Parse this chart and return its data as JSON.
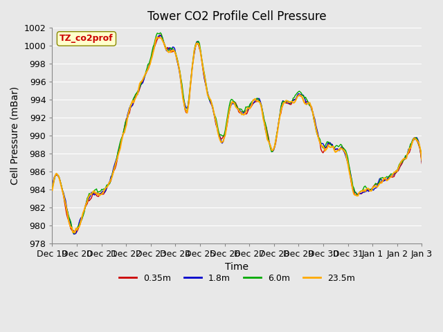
{
  "title": "Tower CO2 Profile Cell Pressure",
  "xlabel": "Time",
  "ylabel": "Cell Pressure (mBar)",
  "ylim": [
    978,
    1002
  ],
  "yticks": [
    978,
    980,
    982,
    984,
    986,
    988,
    990,
    992,
    994,
    996,
    998,
    1000,
    1002
  ],
  "legend_label": "TZ_co2prof",
  "series_labels": [
    "0.35m",
    "1.8m",
    "6.0m",
    "23.5m"
  ],
  "series_colors": [
    "#cc0000",
    "#0000cc",
    "#00aa00",
    "#ffaa00"
  ],
  "series_linewidths": [
    1.0,
    1.0,
    1.0,
    1.5
  ],
  "background_color": "#e8e8e8",
  "plot_bg_color": "#e8e8e8",
  "grid_color": "#ffffff",
  "title_fontsize": 12,
  "axis_label_fontsize": 10,
  "tick_fontsize": 9,
  "n_points": 336,
  "x_start": 0,
  "x_end": 336,
  "xtick_labels": [
    "Dec 19",
    "Dec 20",
    "Dec 21",
    "Dec 22",
    "Dec 23",
    "Dec 24",
    "Dec 25",
    "Dec 26",
    "Dec 27",
    "Dec 28",
    "Dec 29",
    "Dec 30",
    "Dec 31",
    "Jan 1",
    "Jan 2",
    "Jan 3"
  ],
  "xtick_positions": [
    0,
    24,
    48,
    72,
    96,
    120,
    144,
    168,
    192,
    216,
    240,
    264,
    288,
    312,
    336,
    360
  ]
}
